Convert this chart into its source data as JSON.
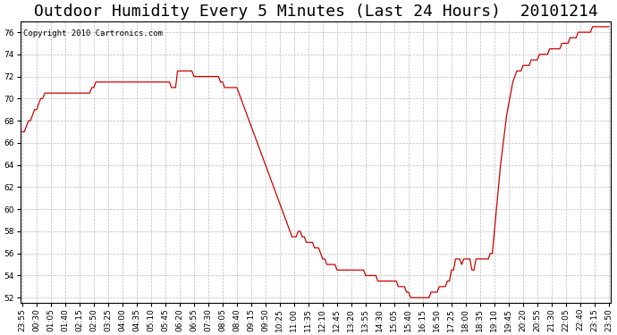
{
  "title": "Outdoor Humidity Every 5 Minutes (Last 24 Hours)  20101214",
  "copyright": "Copyright 2010 Cartronics.com",
  "ylim": [
    51.5,
    77.0
  ],
  "yticks": [
    52.0,
    54.0,
    56.0,
    58.0,
    60.0,
    62.0,
    64.0,
    66.0,
    68.0,
    70.0,
    72.0,
    74.0,
    76.0
  ],
  "line_color": "#cc0000",
  "background_color": "#ffffff",
  "grid_color": "#bbbbbb",
  "title_fontsize": 13,
  "copyright_fontsize": 6.5,
  "tick_fontsize": 6.5,
  "humidity_data": [
    67.0,
    67.0,
    67.5,
    68.0,
    68.0,
    68.5,
    69.0,
    69.0,
    69.5,
    70.0,
    70.0,
    70.5,
    70.5,
    70.5,
    70.5,
    70.5,
    70.5,
    70.5,
    70.5,
    70.5,
    70.5,
    70.5,
    70.5,
    70.5,
    70.5,
    70.5,
    70.5,
    70.5,
    70.5,
    70.5,
    70.5,
    70.5,
    70.5,
    70.5,
    71.0,
    71.0,
    71.5,
    71.5,
    71.5,
    71.5,
    71.5,
    71.5,
    71.5,
    71.5,
    71.5,
    71.5,
    71.5,
    71.5,
    71.5,
    71.5,
    71.5,
    71.5,
    71.5,
    71.5,
    71.5,
    71.5,
    71.5,
    71.5,
    71.5,
    71.5,
    71.5,
    71.5,
    71.5,
    71.5,
    71.5,
    71.5,
    71.5,
    71.5,
    71.5,
    71.5,
    71.5,
    71.5,
    71.5,
    71.0,
    71.0,
    71.0,
    72.5,
    72.5,
    72.5,
    72.5,
    72.5,
    72.5,
    72.5,
    72.5,
    72.0,
    72.0,
    72.0,
    72.0,
    72.0,
    72.0,
    72.0,
    72.0,
    72.0,
    72.0,
    72.0,
    72.0,
    72.0,
    71.5,
    71.5,
    71.0,
    71.0,
    71.0,
    71.0,
    71.0,
    71.0,
    71.0,
    70.5,
    70.0,
    69.5,
    69.0,
    68.5,
    68.0,
    67.5,
    67.0,
    66.5,
    66.0,
    65.5,
    65.0,
    64.5,
    64.0,
    63.5,
    63.0,
    62.5,
    62.0,
    61.5,
    61.0,
    60.5,
    60.0,
    59.5,
    59.0,
    58.5,
    58.0,
    57.5,
    57.5,
    57.5,
    58.0,
    58.0,
    57.5,
    57.5,
    57.0,
    57.0,
    57.0,
    57.0,
    56.5,
    56.5,
    56.5,
    56.0,
    55.5,
    55.5,
    55.0,
    55.0,
    55.0,
    55.0,
    55.0,
    54.5,
    54.5,
    54.5,
    54.5,
    54.5,
    54.5,
    54.5,
    54.5,
    54.5,
    54.5,
    54.5,
    54.5,
    54.5,
    54.5,
    54.0,
    54.0,
    54.0,
    54.0,
    54.0,
    54.0,
    53.5,
    53.5,
    53.5,
    53.5,
    53.5,
    53.5,
    53.5,
    53.5,
    53.5,
    53.5,
    53.0,
    53.0,
    53.0,
    53.0,
    52.5,
    52.5,
    52.0,
    52.0,
    52.0,
    52.0,
    52.0,
    52.0,
    52.0,
    52.0,
    52.0,
    52.0,
    52.5,
    52.5,
    52.5,
    52.5,
    53.0,
    53.0,
    53.0,
    53.0,
    53.5,
    53.5,
    54.5,
    54.5,
    55.5,
    55.5,
    55.5,
    55.0,
    55.5,
    55.5,
    55.5,
    55.5,
    54.5,
    54.5,
    55.5,
    55.5,
    55.5,
    55.5,
    55.5,
    55.5,
    55.5,
    56.0,
    56.0,
    58.0,
    60.0,
    62.0,
    64.0,
    65.5,
    67.0,
    68.5,
    69.5,
    70.5,
    71.5,
    72.0,
    72.5,
    72.5,
    72.5,
    73.0,
    73.0,
    73.0,
    73.0,
    73.5,
    73.5,
    73.5,
    73.5,
    74.0,
    74.0,
    74.0,
    74.0,
    74.0,
    74.5,
    74.5,
    74.5,
    74.5,
    74.5,
    74.5,
    75.0,
    75.0,
    75.0,
    75.0,
    75.5,
    75.5,
    75.5,
    75.5,
    76.0,
    76.0,
    76.0,
    76.0,
    76.0,
    76.0,
    76.0,
    76.5,
    76.5,
    76.5,
    76.5,
    76.5,
    76.5,
    76.5,
    76.5,
    76.5
  ]
}
